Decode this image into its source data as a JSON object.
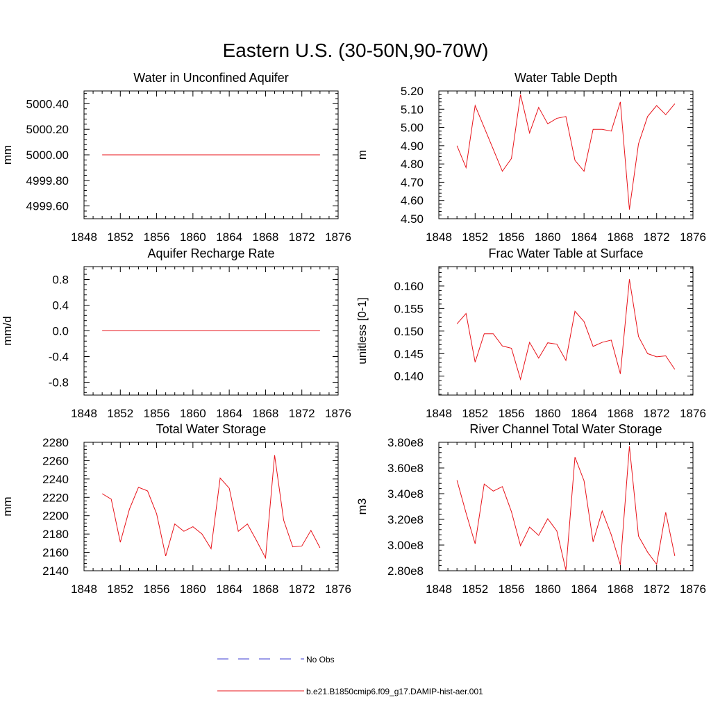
{
  "figure_title": "Eastern U.S. (30-50N,90-70W)",
  "legend": {
    "entries": [
      {
        "label": "No Obs",
        "color": "#3b3bd0",
        "style": "dashed"
      },
      {
        "label": "b.e21.B1850cmip6.f09_g17.DAMIP-hist-aer.001",
        "color": "#e8131a",
        "style": "solid"
      }
    ]
  },
  "chart_data": [
    {
      "type": "line",
      "title": "Water in Unconfined Aquifer",
      "xlabel": "",
      "ylabel": "mm",
      "xlim": [
        1848,
        1876
      ],
      "ylim": [
        4999.5,
        5000.5
      ],
      "xticks": [
        1848,
        1852,
        1856,
        1860,
        1864,
        1868,
        1872,
        1876
      ],
      "yticks": [
        4999.6,
        4999.8,
        5000.0,
        5000.2,
        5000.4
      ],
      "ytick_labels": [
        "4999.60",
        "4999.80",
        "5000.00",
        "5000.20",
        "5000.40"
      ],
      "series": [
        {
          "color": "#e8131a",
          "x": [
            1850,
            1851,
            1852,
            1853,
            1854,
            1855,
            1856,
            1857,
            1858,
            1859,
            1860,
            1861,
            1862,
            1863,
            1864,
            1865,
            1866,
            1867,
            1868,
            1869,
            1870,
            1871,
            1872,
            1873,
            1874
          ],
          "y": [
            5000,
            5000,
            5000,
            5000,
            5000,
            5000,
            5000,
            5000,
            5000,
            5000,
            5000,
            5000,
            5000,
            5000,
            5000,
            5000,
            5000,
            5000,
            5000,
            5000,
            5000,
            5000,
            5000,
            5000,
            5000
          ]
        }
      ]
    },
    {
      "type": "line",
      "title": "Water Table Depth",
      "xlabel": "",
      "ylabel": "m",
      "xlim": [
        1848,
        1876
      ],
      "ylim": [
        4.5,
        5.2
      ],
      "xticks": [
        1848,
        1852,
        1856,
        1860,
        1864,
        1868,
        1872,
        1876
      ],
      "yticks": [
        4.5,
        4.6,
        4.7,
        4.8,
        4.9,
        5.0,
        5.1,
        5.2
      ],
      "ytick_labels": [
        "4.50",
        "4.60",
        "4.70",
        "4.80",
        "4.90",
        "5.00",
        "5.10",
        "5.20"
      ],
      "series": [
        {
          "color": "#e8131a",
          "x": [
            1850,
            1851,
            1852,
            1853,
            1854,
            1855,
            1856,
            1857,
            1858,
            1859,
            1860,
            1861,
            1862,
            1863,
            1864,
            1865,
            1866,
            1867,
            1868,
            1869,
            1870,
            1871,
            1872,
            1873,
            1874
          ],
          "y": [
            4.9,
            4.78,
            5.12,
            5.0,
            4.88,
            4.76,
            4.83,
            5.18,
            4.97,
            5.11,
            5.02,
            5.05,
            5.06,
            4.82,
            4.76,
            4.99,
            4.99,
            4.98,
            5.14,
            4.55,
            4.91,
            5.06,
            5.12,
            5.07,
            5.13
          ]
        }
      ]
    },
    {
      "type": "line",
      "title": "Aquifer Recharge Rate",
      "xlabel": "",
      "ylabel": "mm/d",
      "xlim": [
        1848,
        1876
      ],
      "ylim": [
        -1.0,
        1.0
      ],
      "xticks": [
        1848,
        1852,
        1856,
        1860,
        1864,
        1868,
        1872,
        1876
      ],
      "yticks": [
        -0.8,
        -0.4,
        0.0,
        0.4,
        0.8
      ],
      "ytick_labels": [
        "-0.8",
        "-0.4",
        "0.0",
        "0.4",
        "0.8"
      ],
      "series": [
        {
          "color": "#e8131a",
          "x": [
            1850,
            1851,
            1852,
            1853,
            1854,
            1855,
            1856,
            1857,
            1858,
            1859,
            1860,
            1861,
            1862,
            1863,
            1864,
            1865,
            1866,
            1867,
            1868,
            1869,
            1870,
            1871,
            1872,
            1873,
            1874
          ],
          "y": [
            0,
            0,
            0,
            0,
            0,
            0,
            0,
            0,
            0,
            0,
            0,
            0,
            0,
            0,
            0,
            0,
            0,
            0,
            0,
            0,
            0,
            0,
            0,
            0,
            0
          ]
        }
      ]
    },
    {
      "type": "line",
      "title": "Frac Water Table at Surface",
      "xlabel": "",
      "ylabel": "unitless [0-1]",
      "xlim": [
        1848,
        1876
      ],
      "ylim": [
        0.1358,
        0.1643
      ],
      "xticks": [
        1848,
        1852,
        1856,
        1860,
        1864,
        1868,
        1872,
        1876
      ],
      "yticks": [
        0.14,
        0.145,
        0.15,
        0.155,
        0.16
      ],
      "ytick_labels": [
        "0.140",
        "0.145",
        "0.150",
        "0.155",
        "0.160"
      ],
      "series": [
        {
          "color": "#e8131a",
          "x": [
            1850,
            1851,
            1852,
            1853,
            1854,
            1855,
            1856,
            1857,
            1858,
            1859,
            1860,
            1861,
            1862,
            1863,
            1864,
            1865,
            1866,
            1867,
            1868,
            1869,
            1870,
            1871,
            1872,
            1873,
            1874
          ],
          "y": [
            0.1516,
            0.1539,
            0.1431,
            0.1494,
            0.1494,
            0.1467,
            0.1462,
            0.1393,
            0.1475,
            0.144,
            0.1474,
            0.1471,
            0.1435,
            0.1544,
            0.1521,
            0.1466,
            0.1475,
            0.148,
            0.1405,
            0.1615,
            0.1488,
            0.145,
            0.1443,
            0.1445,
            0.1415
          ]
        }
      ]
    },
    {
      "type": "line",
      "title": "Total Water Storage",
      "xlabel": "",
      "ylabel": "mm",
      "xlim": [
        1848,
        1876
      ],
      "ylim": [
        2140,
        2280
      ],
      "xticks": [
        1848,
        1852,
        1856,
        1860,
        1864,
        1868,
        1872,
        1876
      ],
      "yticks": [
        2140,
        2160,
        2180,
        2200,
        2220,
        2240,
        2260,
        2280
      ],
      "ytick_labels": [
        "2140",
        "2160",
        "2180",
        "2200",
        "2220",
        "2240",
        "2260",
        "2280"
      ],
      "series": [
        {
          "color": "#e8131a",
          "x": [
            1850,
            1851,
            1852,
            1853,
            1854,
            1855,
            1856,
            1857,
            1858,
            1859,
            1860,
            1861,
            1862,
            1863,
            1864,
            1865,
            1866,
            1867,
            1868,
            1869,
            1870,
            1871,
            1872,
            1873,
            1874
          ],
          "y": [
            2224,
            2218,
            2171,
            2207,
            2231,
            2227,
            2202,
            2156,
            2191,
            2183,
            2188,
            2180,
            2164,
            2241,
            2230,
            2183,
            2191,
            2173,
            2154,
            2266,
            2195,
            2166,
            2167,
            2184,
            2165
          ]
        }
      ]
    },
    {
      "type": "line",
      "title": "River Channel Total Water Storage",
      "xlabel": "",
      "ylabel": "m3",
      "xlim": [
        1848,
        1876
      ],
      "ylim": [
        280000000,
        380000000
      ],
      "xticks": [
        1848,
        1852,
        1856,
        1860,
        1864,
        1868,
        1872,
        1876
      ],
      "yticks": [
        280000000,
        300000000,
        320000000,
        340000000,
        360000000,
        380000000
      ],
      "ytick_labels": [
        "2.80e8",
        "3.00e8",
        "3.20e8",
        "3.40e8",
        "3.60e8",
        "3.80e8"
      ],
      "series": [
        {
          "color": "#e8131a",
          "x": [
            1850,
            1851,
            1852,
            1853,
            1854,
            1855,
            1856,
            1857,
            1858,
            1859,
            1860,
            1861,
            1862,
            1863,
            1864,
            1865,
            1866,
            1867,
            1868,
            1869,
            1870,
            1871,
            1872,
            1873,
            1874
          ],
          "y": [
            350500000,
            325000000,
            301000000,
            347500000,
            342000000,
            345500000,
            326000000,
            299500000,
            314000000,
            307500000,
            320500000,
            311000000,
            280500000,
            368500000,
            350000000,
            302500000,
            326500000,
            308000000,
            284500000,
            377000000,
            307000000,
            294500000,
            285000000,
            325500000,
            291500000
          ]
        }
      ]
    }
  ]
}
